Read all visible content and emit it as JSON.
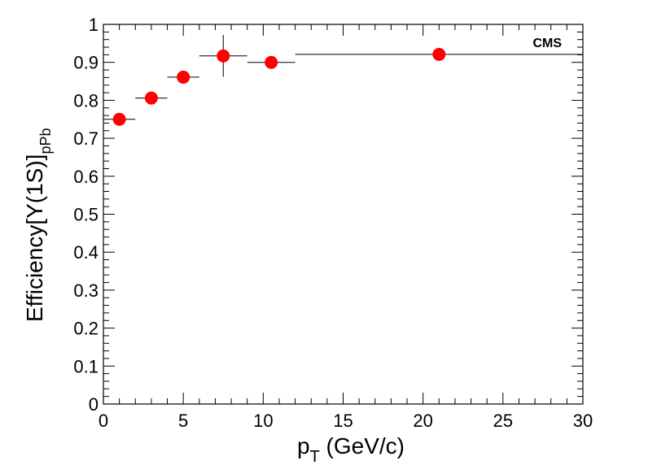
{
  "chart_data": {
    "type": "scatter",
    "annotation": "CMS",
    "xlabel": {
      "main": "p",
      "sub": "T",
      "rest": " (GeV/c)"
    },
    "ylabel": {
      "main": "Efficiency[Υ(1S)]",
      "sub": "pPb"
    },
    "xlim": [
      0,
      30
    ],
    "ylim": [
      0,
      1
    ],
    "xticks": [
      "0",
      "5",
      "10",
      "15",
      "20",
      "25",
      "30"
    ],
    "yticks": [
      "0",
      "0.1",
      "0.2",
      "0.3",
      "0.4",
      "0.5",
      "0.6",
      "0.7",
      "0.8",
      "0.9",
      "1"
    ],
    "grid": false,
    "marker_color": "#ff0000",
    "points": [
      {
        "x": 1.0,
        "y": 0.75,
        "xerr": [
          0.0,
          2.0
        ],
        "yerr": 0.0
      },
      {
        "x": 3.0,
        "y": 0.806,
        "xerr": [
          2.0,
          4.0
        ],
        "yerr": 0.0
      },
      {
        "x": 5.0,
        "y": 0.861,
        "xerr": [
          4.0,
          6.0
        ],
        "yerr": 0.0
      },
      {
        "x": 7.5,
        "y": 0.917,
        "xerr": [
          6.0,
          9.0
        ],
        "yerr": 0.055
      },
      {
        "x": 10.5,
        "y": 0.9,
        "xerr": [
          9.0,
          12.0
        ],
        "yerr": 0.0
      },
      {
        "x": 21.0,
        "y": 0.921,
        "xerr": [
          12.0,
          30.0
        ],
        "yerr": 0.0
      }
    ]
  }
}
